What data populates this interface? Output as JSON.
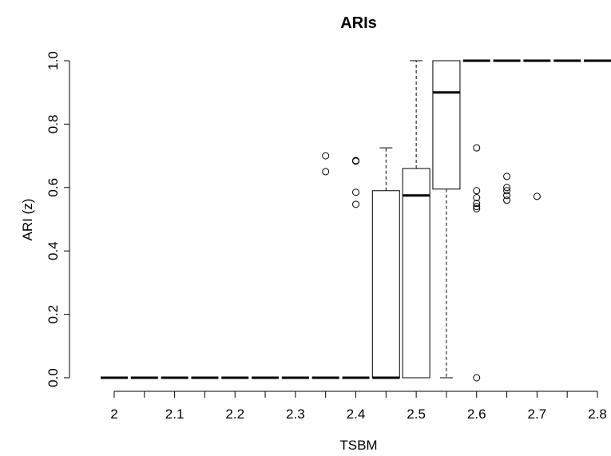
{
  "chart_data": {
    "type": "boxplot",
    "title": "ARIs",
    "xlabel": "TSBM",
    "ylabel": "ARI (z)",
    "ylim": [
      0,
      1
    ],
    "yticks": [
      "0.0",
      "0.2",
      "0.4",
      "0.6",
      "0.8",
      "1.0"
    ],
    "xticks": [
      "2",
      "2.1",
      "2.2",
      "2.3",
      "2.4",
      "2.5",
      "2.6",
      "2.7",
      "2.8"
    ],
    "grid": false,
    "legend": "none",
    "boxes": [
      {
        "x": 2.0,
        "min": 0,
        "q1": 0,
        "median": 0,
        "q3": 0,
        "max": 0,
        "outliers": []
      },
      {
        "x": 2.05,
        "min": 0,
        "q1": 0,
        "median": 0,
        "q3": 0,
        "max": 0,
        "outliers": []
      },
      {
        "x": 2.1,
        "min": 0,
        "q1": 0,
        "median": 0,
        "q3": 0,
        "max": 0,
        "outliers": []
      },
      {
        "x": 2.15,
        "min": 0,
        "q1": 0,
        "median": 0,
        "q3": 0,
        "max": 0,
        "outliers": []
      },
      {
        "x": 2.2,
        "min": 0,
        "q1": 0,
        "median": 0,
        "q3": 0,
        "max": 0,
        "outliers": []
      },
      {
        "x": 2.25,
        "min": 0,
        "q1": 0,
        "median": 0,
        "q3": 0,
        "max": 0,
        "outliers": []
      },
      {
        "x": 2.3,
        "min": 0,
        "q1": 0,
        "median": 0,
        "q3": 0,
        "max": 0,
        "outliers": []
      },
      {
        "x": 2.35,
        "min": 0,
        "q1": 0,
        "median": 0,
        "q3": 0,
        "max": 0,
        "outliers": [
          0.7,
          0.65
        ]
      },
      {
        "x": 2.4,
        "min": 0,
        "q1": 0,
        "median": 0,
        "q3": 0,
        "max": 0,
        "outliers": [
          0.685,
          0.683,
          0.585,
          0.547
        ]
      },
      {
        "x": 2.45,
        "min": 0,
        "q1": 0,
        "median": 0,
        "q3": 0.59,
        "max": 0.725,
        "outliers": []
      },
      {
        "x": 2.5,
        "min": 0,
        "q1": 0,
        "median": 0.575,
        "q3": 0.66,
        "max": 1.0,
        "outliers": []
      },
      {
        "x": 2.55,
        "min": 0,
        "q1": 0.595,
        "median": 0.9,
        "q3": 1.0,
        "max": 1.0,
        "outliers": []
      },
      {
        "x": 2.6,
        "min": 1,
        "q1": 1,
        "median": 1,
        "q3": 1,
        "max": 1,
        "outliers": [
          0.725,
          0.59,
          0.568,
          0.55,
          0.54,
          0.533,
          0.0
        ]
      },
      {
        "x": 2.65,
        "min": 1,
        "q1": 1,
        "median": 1,
        "q3": 1,
        "max": 1,
        "outliers": [
          0.635,
          0.6,
          0.59,
          0.575,
          0.56
        ]
      },
      {
        "x": 2.7,
        "min": 1,
        "q1": 1,
        "median": 1,
        "q3": 1,
        "max": 1,
        "outliers": [
          0.572
        ]
      },
      {
        "x": 2.75,
        "min": 1,
        "q1": 1,
        "median": 1,
        "q3": 1,
        "max": 1,
        "outliers": []
      },
      {
        "x": 2.8,
        "min": 1,
        "q1": 1,
        "median": 1,
        "q3": 1,
        "max": 1,
        "outliers": []
      }
    ]
  }
}
